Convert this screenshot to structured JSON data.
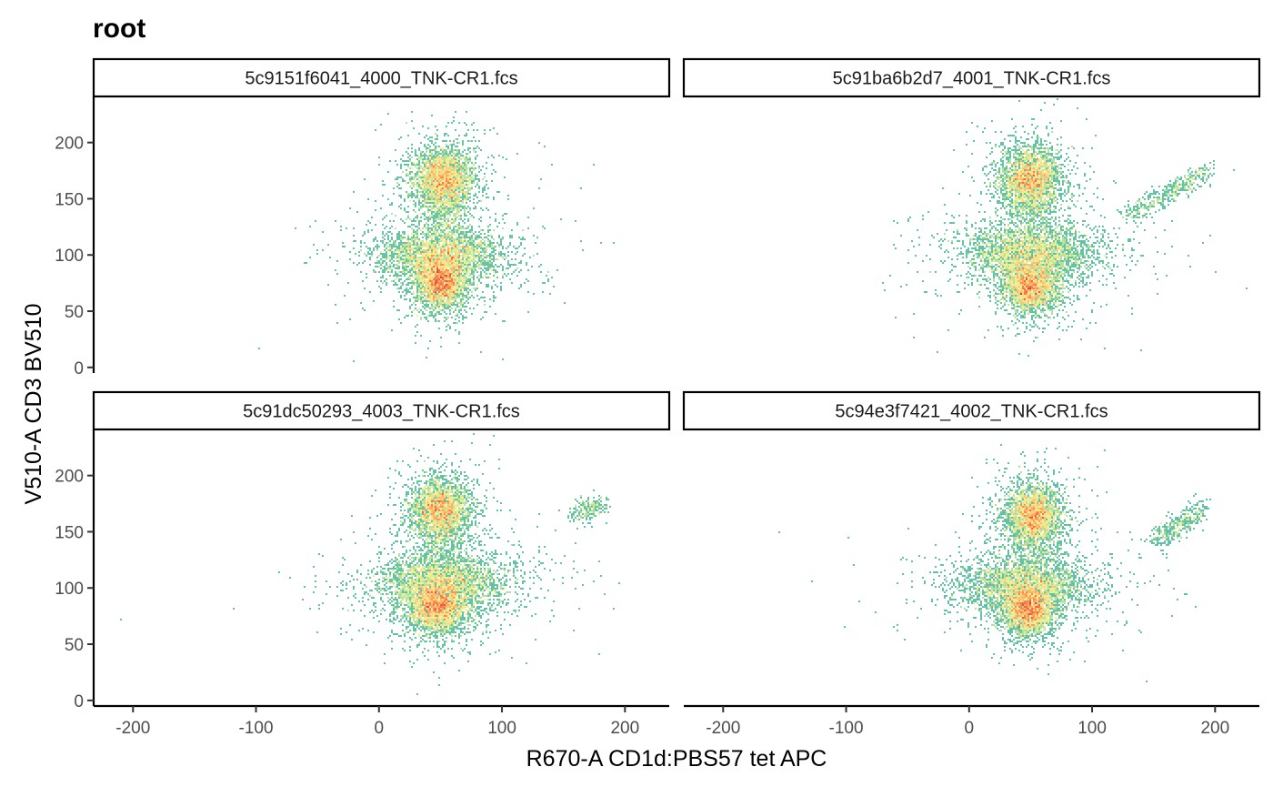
{
  "chart_data": {
    "type": "scatter",
    "title": "root",
    "xlabel": "R670-A CD1d:PBS57 tet APC",
    "ylabel": "V510-A CD3 BV510",
    "xlim": [
      -232,
      236
    ],
    "ylim": [
      -5,
      241
    ],
    "x_ticks": [
      -200,
      -100,
      0,
      100,
      200
    ],
    "y_ticks": [
      0,
      50,
      100,
      150,
      200
    ],
    "layout": "2x2 facets",
    "color_scale": [
      "#5e4fa2",
      "#3288bd",
      "#66c2a5",
      "#abdda4",
      "#e6f598",
      "#fee08b",
      "#fdae61",
      "#f46d43",
      "#d53e4f"
    ],
    "panels": [
      {
        "label": "5c9151f6041_4000_TNK-CR1.fcs",
        "clusters": [
          {
            "x": 52,
            "y": 168,
            "sx": 12,
            "sy": 14,
            "weight": 0.33
          },
          {
            "x": 50,
            "y": 100,
            "sx": 24,
            "sy": 12,
            "weight": 0.33
          },
          {
            "x": 50,
            "y": 75,
            "sx": 10,
            "sy": 11,
            "weight": 0.3
          },
          {
            "x": 55,
            "y": 135,
            "sx": 10,
            "sy": 12,
            "weight": 0.04
          }
        ],
        "outliers": [
          [
            -45,
            104
          ],
          [
            -98,
            17
          ],
          [
            -20,
            6
          ],
          [
            -35,
            55
          ],
          [
            50,
            18
          ],
          [
            100,
            7
          ],
          [
            130,
            200
          ],
          [
            140,
            180
          ],
          [
            165,
            160
          ],
          [
            175,
            180
          ],
          [
            130,
            160
          ],
          [
            180,
            110
          ],
          [
            160,
            130
          ],
          [
            125,
            90
          ],
          [
            140,
            80
          ],
          [
            145,
            87
          ],
          [
            -15,
            58
          ],
          [
            95,
            48
          ],
          [
            30,
            28
          ],
          [
            55,
            48
          ]
        ]
      },
      {
        "label": "5c91ba6b2d7_4001_TNK-CR1.fcs",
        "clusters": [
          {
            "x": 50,
            "y": 168,
            "sx": 12,
            "sy": 14,
            "weight": 0.34
          },
          {
            "x": 50,
            "y": 102,
            "sx": 26,
            "sy": 12,
            "weight": 0.33
          },
          {
            "x": 50,
            "y": 72,
            "sx": 11,
            "sy": 11,
            "weight": 0.3
          },
          {
            "x": 52,
            "y": 135,
            "sx": 10,
            "sy": 12,
            "weight": 0.03
          }
        ],
        "outliers": [
          [
            -40,
            115
          ],
          [
            -35,
            100
          ],
          [
            -42,
            85
          ],
          [
            -45,
            48
          ],
          [
            -55,
            117
          ],
          [
            -45,
            27
          ],
          [
            -25,
            14
          ],
          [
            100,
            50
          ],
          [
            120,
            115
          ],
          [
            140,
            100
          ],
          [
            150,
            90
          ],
          [
            160,
            82
          ],
          [
            165,
            130
          ],
          [
            190,
            110
          ],
          [
            200,
            85
          ],
          [
            215,
            175
          ],
          [
            140,
            15
          ],
          [
            110,
            17
          ],
          [
            95,
            220
          ],
          [
            -70,
            75
          ]
        ],
        "arm": {
          "x0": 130,
          "y0": 135,
          "x1": 195,
          "y1": 175,
          "sx": 5,
          "sy": 4,
          "weight": 0.012
        }
      },
      {
        "label": "5c91dc50293_4003_TNK-CR1.fcs",
        "clusters": [
          {
            "x": 50,
            "y": 170,
            "sx": 12,
            "sy": 13,
            "weight": 0.33
          },
          {
            "x": 52,
            "y": 105,
            "sx": 26,
            "sy": 12,
            "weight": 0.33
          },
          {
            "x": 48,
            "y": 82,
            "sx": 12,
            "sy": 11,
            "weight": 0.31
          },
          {
            "x": 48,
            "y": 135,
            "sx": 9,
            "sy": 11,
            "weight": 0.03
          }
        ],
        "outliers": [
          [
            -210,
            72
          ],
          [
            -20,
            150
          ],
          [
            -10,
            50
          ],
          [
            120,
            33
          ],
          [
            140,
            125
          ],
          [
            150,
            105
          ],
          [
            160,
            100
          ],
          [
            180,
            110
          ],
          [
            195,
            105
          ],
          [
            175,
            170
          ],
          [
            165,
            180
          ],
          [
            185,
            170
          ],
          [
            130,
            165
          ],
          [
            110,
            150
          ],
          [
            160,
            140
          ],
          [
            60,
            230
          ],
          [
            30,
            55
          ],
          [
            90,
            60
          ],
          [
            -30,
            120
          ],
          [
            -5,
            60
          ]
        ],
        "arm": {
          "x0": 160,
          "y0": 165,
          "x1": 180,
          "y1": 175,
          "sx": 5,
          "sy": 5,
          "weight": 0.006
        }
      },
      {
        "label": "5c94e3f7421_4002_TNK-CR1.fcs",
        "clusters": [
          {
            "x": 52,
            "y": 165,
            "sx": 11,
            "sy": 13,
            "weight": 0.34
          },
          {
            "x": 45,
            "y": 102,
            "sx": 26,
            "sy": 12,
            "weight": 0.33
          },
          {
            "x": 48,
            "y": 80,
            "sx": 10,
            "sy": 11,
            "weight": 0.3
          },
          {
            "x": 50,
            "y": 135,
            "sx": 10,
            "sy": 12,
            "weight": 0.03
          }
        ],
        "outliers": [
          [
            -155,
            150
          ],
          [
            -55,
            125
          ],
          [
            -25,
            90
          ],
          [
            -20,
            80
          ],
          [
            -5,
            165
          ],
          [
            145,
            17
          ],
          [
            85,
            42
          ],
          [
            110,
            120
          ],
          [
            150,
            110
          ],
          [
            170,
            90
          ],
          [
            165,
            75
          ],
          [
            175,
            95
          ],
          [
            -30,
            88
          ],
          [
            -10,
            70
          ],
          [
            120,
            150
          ],
          [
            55,
            220
          ],
          [
            -20,
            60
          ],
          [
            95,
            55
          ],
          [
            105,
            75
          ],
          [
            160,
            130
          ]
        ],
        "arm": {
          "x0": 150,
          "y0": 140,
          "x1": 190,
          "y1": 170,
          "sx": 5,
          "sy": 5,
          "weight": 0.01
        }
      }
    ]
  }
}
